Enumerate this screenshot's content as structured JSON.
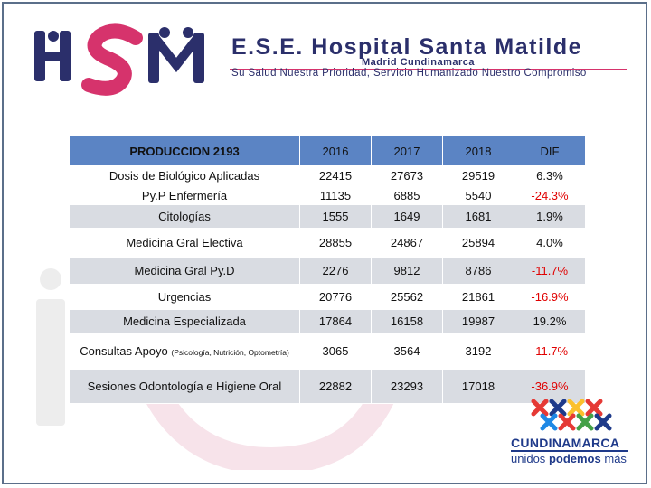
{
  "header": {
    "hospital_name": "E.S.E. Hospital Santa Matilde",
    "city": "Madrid Cundinamarca",
    "slogan": "Su Salud Nuestra Prioridad, Servicio Humanizado Nuestro Compromiso",
    "logo_text": "HSM",
    "brand_color": "#2b2f6b",
    "accent_color": "#d6336c"
  },
  "table": {
    "headers": [
      "PRODUCCION 2193",
      "2016",
      "2017",
      "2018",
      "DIF"
    ],
    "rows": [
      {
        "label": "Dosis de Biológico Aplicadas",
        "v2016": "22415",
        "v2017": "27673",
        "v2018": "29519",
        "dif": "6.3%"
      },
      {
        "label": "Py.P Enfermería",
        "v2016": "11135",
        "v2017": "6885",
        "v2018": "5540",
        "dif": "-24.3%"
      },
      {
        "label": "Citologías",
        "v2016": "1555",
        "v2017": "1649",
        "v2018": "1681",
        "dif": "1.9%"
      },
      {
        "label": "Medicina Gral Electiva",
        "v2016": "28855",
        "v2017": "24867",
        "v2018": "25894",
        "dif": "4.0%"
      },
      {
        "label": "Medicina Gral Py.D",
        "v2016": "2276",
        "v2017": "9812",
        "v2018": "8786",
        "dif": "-11.7%"
      },
      {
        "label": "Urgencias",
        "v2016": "20776",
        "v2017": "25562",
        "v2018": "21861",
        "dif": "-16.9%"
      },
      {
        "label": "Medicina Especializada",
        "v2016": "17864",
        "v2017": "16158",
        "v2018": "19987",
        "dif": "19.2%"
      },
      {
        "label": "Consultas Apoyo",
        "label_sub": "(Psicología, Nutrición, Optometría)",
        "v2016": "3065",
        "v2017": "3564",
        "v2018": "3192",
        "dif": "-11.7%"
      },
      {
        "label": "Sesiones Odontología e Higiene Oral",
        "v2016": "22882",
        "v2017": "23293",
        "v2018": "17018",
        "dif": "-36.9%"
      }
    ],
    "header_color": "#5b84c4",
    "shade_color": "#d9dce2",
    "negative_color": "#e00000"
  },
  "footer": {
    "dept_name": "CUNDINAMARCA",
    "dept_slogan_a": "unidos",
    "dept_slogan_b": "podemos",
    "dept_slogan_c": "más"
  }
}
